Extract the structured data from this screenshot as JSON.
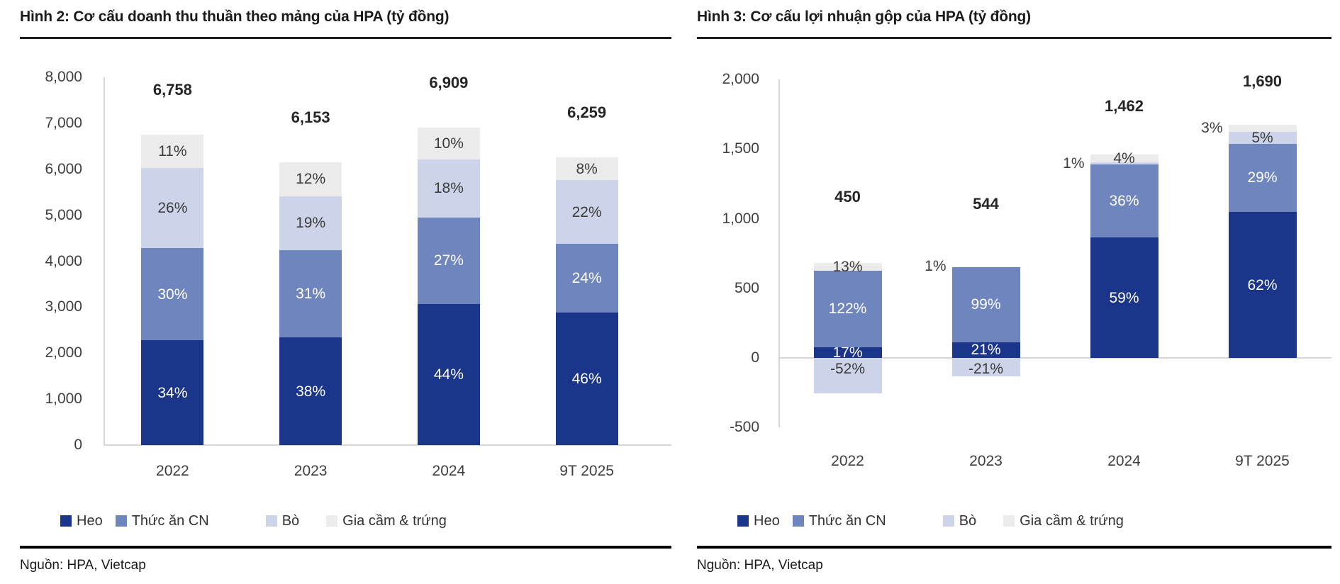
{
  "page": {
    "background": "#ffffff"
  },
  "source_label": "Nguồn: HPA, Vietcap",
  "chart_data": [
    {
      "type": "bar",
      "stacked": true,
      "title": "Hình 2: Cơ cấu doanh thu thuần theo mảng của HPA (tỷ đồng)",
      "source": "Nguồn: HPA, Vietcap",
      "categories": [
        "2022",
        "2023",
        "2024",
        "9T 2025"
      ],
      "ylim": [
        0,
        8000
      ],
      "grid": false,
      "legend_position": "bottom",
      "yticks": [
        {
          "v": 8000,
          "label": "8,000"
        },
        {
          "v": 7000,
          "label": "7,000"
        },
        {
          "v": 6000,
          "label": "6,000"
        },
        {
          "v": 5000,
          "label": "5,000"
        },
        {
          "v": 4000,
          "label": "4,000"
        },
        {
          "v": 3000,
          "label": "3,000"
        },
        {
          "v": 2000,
          "label": "2,000"
        },
        {
          "v": 1000,
          "label": "1,000"
        },
        {
          "v": 0,
          "label": "0"
        }
      ],
      "series": [
        {
          "key": "heo",
          "name": "Heo",
          "color": "#1A3589",
          "label_color": "#ffffff",
          "pcts": [
            "34%",
            "38%",
            "44%",
            "46%"
          ]
        },
        {
          "key": "thuc-an-cn",
          "name": "Thức ăn CN",
          "color": "#6F85BD",
          "label_color": "#ffffff",
          "pcts": [
            "30%",
            "31%",
            "27%",
            "24%"
          ]
        },
        {
          "key": "bo",
          "name": "Bò",
          "color": "#CDD4E9",
          "label_color": "#3c3c3c",
          "pcts": [
            "26%",
            "19%",
            "18%",
            "22%"
          ]
        },
        {
          "key": "gia-cam-trung",
          "name": "Gia cầm & trứng",
          "color": "#EBEBEB",
          "label_color": "#3c3c3c",
          "pcts": [
            "11%",
            "12%",
            "10%",
            "8%"
          ]
        }
      ],
      "bars": [
        {
          "category": "2022",
          "total": 6758,
          "total_label": "6,758",
          "label_gap": 50,
          "segments": [
            {
              "series": "heo",
              "label": "34%",
              "value": 2275
            },
            {
              "series": "thuc-an-cn",
              "label": "30%",
              "value": 2007
            },
            {
              "series": "bo",
              "label": "26%",
              "value": 1740
            },
            {
              "series": "gia-cam-trung",
              "label": "11%",
              "value": 736
            }
          ]
        },
        {
          "category": "2023",
          "total": 6153,
          "total_label": "6,153",
          "label_gap": 50,
          "segments": [
            {
              "series": "heo",
              "label": "38%",
              "value": 2338
            },
            {
              "series": "thuc-an-cn",
              "label": "31%",
              "value": 1907
            },
            {
              "series": "bo",
              "label": "19%",
              "value": 1169
            },
            {
              "series": "gia-cam-trung",
              "label": "12%",
              "value": 739
            }
          ]
        },
        {
          "category": "2024",
          "total": 6909,
          "total_label": "6,909",
          "label_gap": 50,
          "segments": [
            {
              "series": "heo",
              "label": "44%",
              "value": 3071
            },
            {
              "series": "thuc-an-cn",
              "label": "27%",
              "value": 1884
            },
            {
              "series": "bo",
              "label": "18%",
              "value": 1256
            },
            {
              "series": "gia-cam-trung",
              "label": "10%",
              "value": 698
            }
          ]
        },
        {
          "category": "9T 2025",
          "total": 6259,
          "total_label": "6,259",
          "label_gap": 50,
          "segments": [
            {
              "series": "heo",
              "label": "46%",
              "value": 2879
            },
            {
              "series": "thuc-an-cn",
              "label": "24%",
              "value": 1502
            },
            {
              "series": "bo",
              "label": "22%",
              "value": 1377
            },
            {
              "series": "gia-cam-trung",
              "label": "8%",
              "value": 501
            }
          ]
        }
      ]
    },
    {
      "type": "bar",
      "stacked": true,
      "title": "Hình 3: Cơ cấu lợi nhuận gộp của HPA (tỷ đồng)",
      "source": "Nguồn: HPA, Vietcap",
      "categories": [
        "2022",
        "2023",
        "2024",
        "9T 2025"
      ],
      "ylim": [
        -500,
        2000
      ],
      "grid": false,
      "legend_position": "bottom",
      "yticks": [
        {
          "v": 2000,
          "label": "2,000"
        },
        {
          "v": 1500,
          "label": "1,500"
        },
        {
          "v": 1000,
          "label": "1,000"
        },
        {
          "v": 500,
          "label": "500"
        },
        {
          "v": 0,
          "label": "0"
        },
        {
          "v": -500,
          "label": "-500"
        }
      ],
      "series": [
        {
          "key": "heo",
          "name": "Heo",
          "color": "#1A3589",
          "label_color": "#ffffff",
          "pcts": [
            "17%",
            "21%",
            "59%",
            "62%"
          ]
        },
        {
          "key": "thuc-an-cn",
          "name": "Thức ăn CN",
          "color": "#6F85BD",
          "label_color": "#ffffff",
          "pcts": [
            "122%",
            "99%",
            "36%",
            "29%"
          ]
        },
        {
          "key": "bo",
          "name": "Bò",
          "color": "#CDD4E9",
          "label_color": "#3c3c3c",
          "pcts": [
            "-52%",
            "-21%",
            "1%",
            "5%"
          ]
        },
        {
          "key": "gia-cam-trung",
          "name": "Gia cầm & trứng",
          "color": "#EBEBEB",
          "label_color": "#3c3c3c",
          "pcts": [
            "13%",
            "1%",
            "4%",
            "3%"
          ]
        }
      ],
      "bars": [
        {
          "category": "2022",
          "total": 450,
          "total_label": "450",
          "label_gap": 80,
          "segments": [
            {
              "series": "heo",
              "label": "17%",
              "value": 77
            },
            {
              "series": "thuc-an-cn",
              "label": "122%",
              "value": 549
            },
            {
              "series": "bo",
              "label": "-52%",
              "value": -234,
              "label_pos": "top"
            },
            {
              "series": "gia-cam-trung",
              "label": "13%",
              "value": 58
            }
          ]
        },
        {
          "category": "2023",
          "total": 544,
          "total_label": "544",
          "label_gap": 75,
          "segments": [
            {
              "series": "heo",
              "label": "21%",
              "value": 114
            },
            {
              "series": "thuc-an-cn",
              "label": "99%",
              "value": 539
            },
            {
              "series": "bo",
              "label": "-21%",
              "value": -114,
              "label_pos": "top"
            },
            {
              "series": "gia-cam-trung",
              "label": "1%",
              "value": 5,
              "label_pos": "left-out"
            }
          ]
        },
        {
          "category": "2024",
          "total": 1462,
          "total_label": "1,462",
          "label_gap": 55,
          "segments": [
            {
              "series": "heo",
              "label": "59%",
              "value": 863
            },
            {
              "series": "thuc-an-cn",
              "label": "36%",
              "value": 526
            },
            {
              "series": "bo",
              "label": "1%",
              "value": 15,
              "label_pos": "left-out"
            },
            {
              "series": "gia-cam-trung",
              "label": "4%",
              "value": 58
            }
          ]
        },
        {
          "category": "9T 2025",
          "total": 1690,
          "total_label": "1,690",
          "label_gap": 48,
          "segments": [
            {
              "series": "heo",
              "label": "62%",
              "value": 1048
            },
            {
              "series": "thuc-an-cn",
              "label": "29%",
              "value": 490
            },
            {
              "series": "bo",
              "label": "5%",
              "value": 85
            },
            {
              "series": "gia-cam-trung",
              "label": "3%",
              "value": 51,
              "label_pos": "left-out"
            }
          ]
        }
      ]
    }
  ]
}
